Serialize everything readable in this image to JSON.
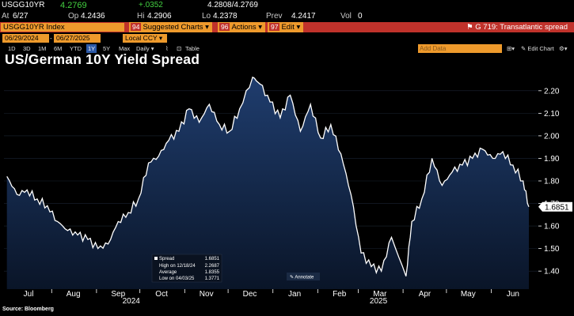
{
  "quote": {
    "ticker": "USGG10YR",
    "last": "4.2769",
    "change": "+.0352",
    "bid_ask": "4.2808/4.2769",
    "date_label": "At",
    "date": "6/27",
    "open_label": "Op",
    "open": "4.2436",
    "high_label": "Hi",
    "high": "4.2906",
    "low_label": "Lo",
    "low": "4.2378",
    "prev_label": "Prev",
    "prev": "4.2417",
    "vol_label": "Vol",
    "vol": "0"
  },
  "command_bar": {
    "security": "USGG10YR Index",
    "suggested_num": "94",
    "suggested_label": "Suggested Charts",
    "actions_num": "96",
    "actions_label": "Actions",
    "edit_num": "97",
    "edit_label": "Edit",
    "chart_name": "G 719: Transatlantic spread"
  },
  "date_row": {
    "start": "06/29/2024",
    "end": "06/27/2025",
    "currency": "Local CCY"
  },
  "toolbar": {
    "ranges": [
      "1D",
      "3D",
      "1M",
      "6M",
      "YTD",
      "1Y",
      "5Y",
      "Max"
    ],
    "active_range": "1Y",
    "frequency": "Daily",
    "table_label": "Table",
    "add_data_placeholder": "Add Data",
    "edit_chart_label": "Edit Chart"
  },
  "chart": {
    "source": "Source: Bloomberg"
  },
  "colors": {
    "accent_orange": "#ee9a2c",
    "bar_red": "#c0322b",
    "active_blue": "#2d5aa8",
    "line": "#ffffff",
    "area_top": "#1f3d6e",
    "area_bottom": "#0a1528"
  },
  "chart_data": {
    "type": "area",
    "title": "US/German 10Y Yield Spread",
    "xlabel": "",
    "ylabel": "",
    "ylim": [
      1.32,
      2.28
    ],
    "yticks": [
      "1.40",
      "1.50",
      "1.60",
      "1.70",
      "1.80",
      "1.90",
      "2.00",
      "2.10",
      "2.20"
    ],
    "month_labels": [
      "Jul",
      "Aug",
      "Sep",
      "Oct",
      "Nov",
      "Dec",
      "Jan",
      "Feb",
      "Mar",
      "Apr",
      "May",
      "Jun"
    ],
    "year_labels": [
      "2024",
      "2025"
    ],
    "last_value_label": "1.6851",
    "legend": {
      "series": "Spread",
      "series_value": "1.6851",
      "high_label": "High on 12/18/24",
      "high_value": "2.2687",
      "average_label": "Average",
      "average_value": "1.8355",
      "low_label": "Low on 04/03/25",
      "low_value": "1.3771"
    },
    "annotate_label": "Annotate",
    "series": [
      {
        "name": "Spread",
        "dates": [
          "2024-07-01",
          "2024-07-08",
          "2024-07-15",
          "2024-07-22",
          "2024-07-29",
          "2024-08-05",
          "2024-08-12",
          "2024-08-19",
          "2024-08-26",
          "2024-09-02",
          "2024-09-09",
          "2024-09-16",
          "2024-09-23",
          "2024-09-30",
          "2024-10-07",
          "2024-10-14",
          "2024-10-21",
          "2024-10-28",
          "2024-11-04",
          "2024-11-11",
          "2024-11-18",
          "2024-11-25",
          "2024-12-02",
          "2024-12-09",
          "2024-12-18",
          "2024-12-23",
          "2024-12-30",
          "2025-01-06",
          "2025-01-13",
          "2025-01-20",
          "2025-01-27",
          "2025-02-03",
          "2025-02-10",
          "2025-02-17",
          "2025-02-24",
          "2025-03-03",
          "2025-03-10",
          "2025-03-17",
          "2025-03-24",
          "2025-04-03",
          "2025-04-07",
          "2025-04-14",
          "2025-04-21",
          "2025-04-28",
          "2025-05-05",
          "2025-05-12",
          "2025-05-19",
          "2025-05-26",
          "2025-06-02",
          "2025-06-09",
          "2025-06-16",
          "2025-06-23",
          "2025-06-27"
        ],
        "values": [
          1.82,
          1.74,
          1.76,
          1.72,
          1.69,
          1.62,
          1.58,
          1.56,
          1.54,
          1.5,
          1.52,
          1.62,
          1.66,
          1.72,
          1.88,
          1.91,
          1.98,
          2.02,
          2.12,
          2.06,
          2.14,
          2.05,
          2.02,
          2.12,
          2.26,
          2.23,
          2.15,
          2.08,
          2.18,
          2.02,
          2.14,
          1.99,
          2.05,
          1.92,
          1.74,
          1.48,
          1.42,
          1.4,
          1.55,
          1.3771,
          1.62,
          1.72,
          1.9,
          1.78,
          1.84,
          1.87,
          1.9,
          1.94,
          1.9,
          1.93,
          1.87,
          1.8,
          1.6851
        ]
      }
    ]
  }
}
